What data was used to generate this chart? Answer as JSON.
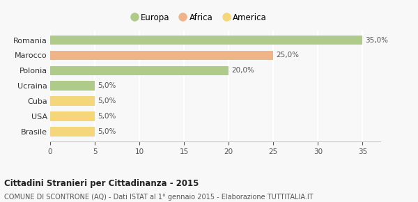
{
  "categories": [
    "Romania",
    "Marocco",
    "Polonia",
    "Ucraina",
    "Cuba",
    "USA",
    "Brasile"
  ],
  "values": [
    35.0,
    25.0,
    20.0,
    5.0,
    5.0,
    5.0,
    5.0
  ],
  "colors": [
    "#aecb8a",
    "#f0b48a",
    "#aecb8a",
    "#aecb8a",
    "#f5d67a",
    "#f5d67a",
    "#f5d67a"
  ],
  "labels": [
    "35,0%",
    "25,0%",
    "20,0%",
    "5,0%",
    "5,0%",
    "5,0%",
    "5,0%"
  ],
  "legend_items": [
    {
      "label": "Europa",
      "color": "#aecb8a"
    },
    {
      "label": "Africa",
      "color": "#f0b48a"
    },
    {
      "label": "America",
      "color": "#f5d67a"
    }
  ],
  "title": "Cittadini Stranieri per Cittadinanza - 2015",
  "subtitle": "COMUNE DI SCONTRONE (AQ) - Dati ISTAT al 1° gennaio 2015 - Elaborazione TUTTITALIA.IT",
  "xlim": [
    0,
    37
  ],
  "xticks": [
    0,
    5,
    10,
    15,
    20,
    25,
    30,
    35
  ],
  "background_color": "#f8f8f8",
  "grid_color": "#ffffff",
  "bar_height": 0.62
}
